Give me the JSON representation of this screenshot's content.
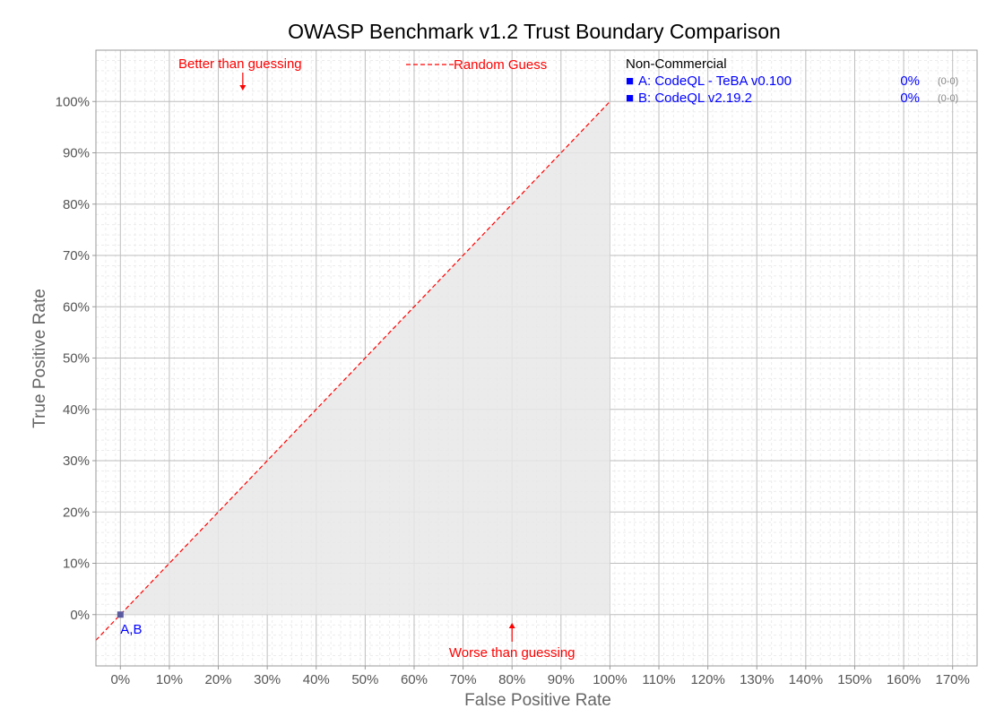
{
  "chart_data": {
    "type": "scatter",
    "title": "OWASP Benchmark v1.2 Trust Boundary Comparison",
    "xlabel": "False Positive Rate",
    "ylabel": "True Positive Rate",
    "xlim": [
      -5,
      175
    ],
    "ylim": [
      -10,
      110
    ],
    "x_ticks": [
      0,
      10,
      20,
      30,
      40,
      50,
      60,
      70,
      80,
      90,
      100,
      110,
      120,
      130,
      140,
      150,
      160,
      170
    ],
    "y_ticks": [
      0,
      10,
      20,
      30,
      40,
      50,
      60,
      70,
      80,
      90,
      100
    ],
    "x_tick_labels": [
      "0%",
      "10%",
      "20%",
      "30%",
      "40%",
      "50%",
      "60%",
      "70%",
      "80%",
      "90%",
      "100%",
      "110%",
      "120%",
      "130%",
      "140%",
      "150%",
      "160%",
      "170%"
    ],
    "y_tick_labels": [
      "0%",
      "10%",
      "20%",
      "30%",
      "40%",
      "50%",
      "60%",
      "70%",
      "80%",
      "90%",
      "100%"
    ],
    "grid": true,
    "guess_line": {
      "label": "Random Guess",
      "from": [
        -5,
        -5
      ],
      "to": [
        100,
        100
      ],
      "color": "#ff0000"
    },
    "shaded_region": {
      "x": [
        0,
        100
      ],
      "y": [
        0,
        100
      ],
      "color": "#e8e8e8"
    },
    "points": [
      {
        "label": "A,B",
        "x": 0,
        "y": 0,
        "color": "#5a5aa0"
      }
    ],
    "annotations": [
      {
        "text": "Better than guessing",
        "x": 25,
        "y": 102,
        "arrow": "down"
      },
      {
        "text": "Worse than guessing",
        "x": 80,
        "y": -2,
        "arrow": "up"
      }
    ],
    "legend": {
      "position": "right",
      "heading": "Non-Commercial",
      "entries": [
        {
          "marker": "■",
          "label": "A: CodeQL - TeBA v0.100",
          "score": "0%",
          "counts": "(0-0)"
        },
        {
          "marker": "■",
          "label": "B: CodeQL v2.19.2",
          "score": "0%",
          "counts": "(0-0)"
        }
      ]
    },
    "colors": {
      "accent": "#ff0000",
      "series": "#0000ff",
      "grid": "#bdbdbd",
      "minor_grid": "#ececec"
    }
  }
}
